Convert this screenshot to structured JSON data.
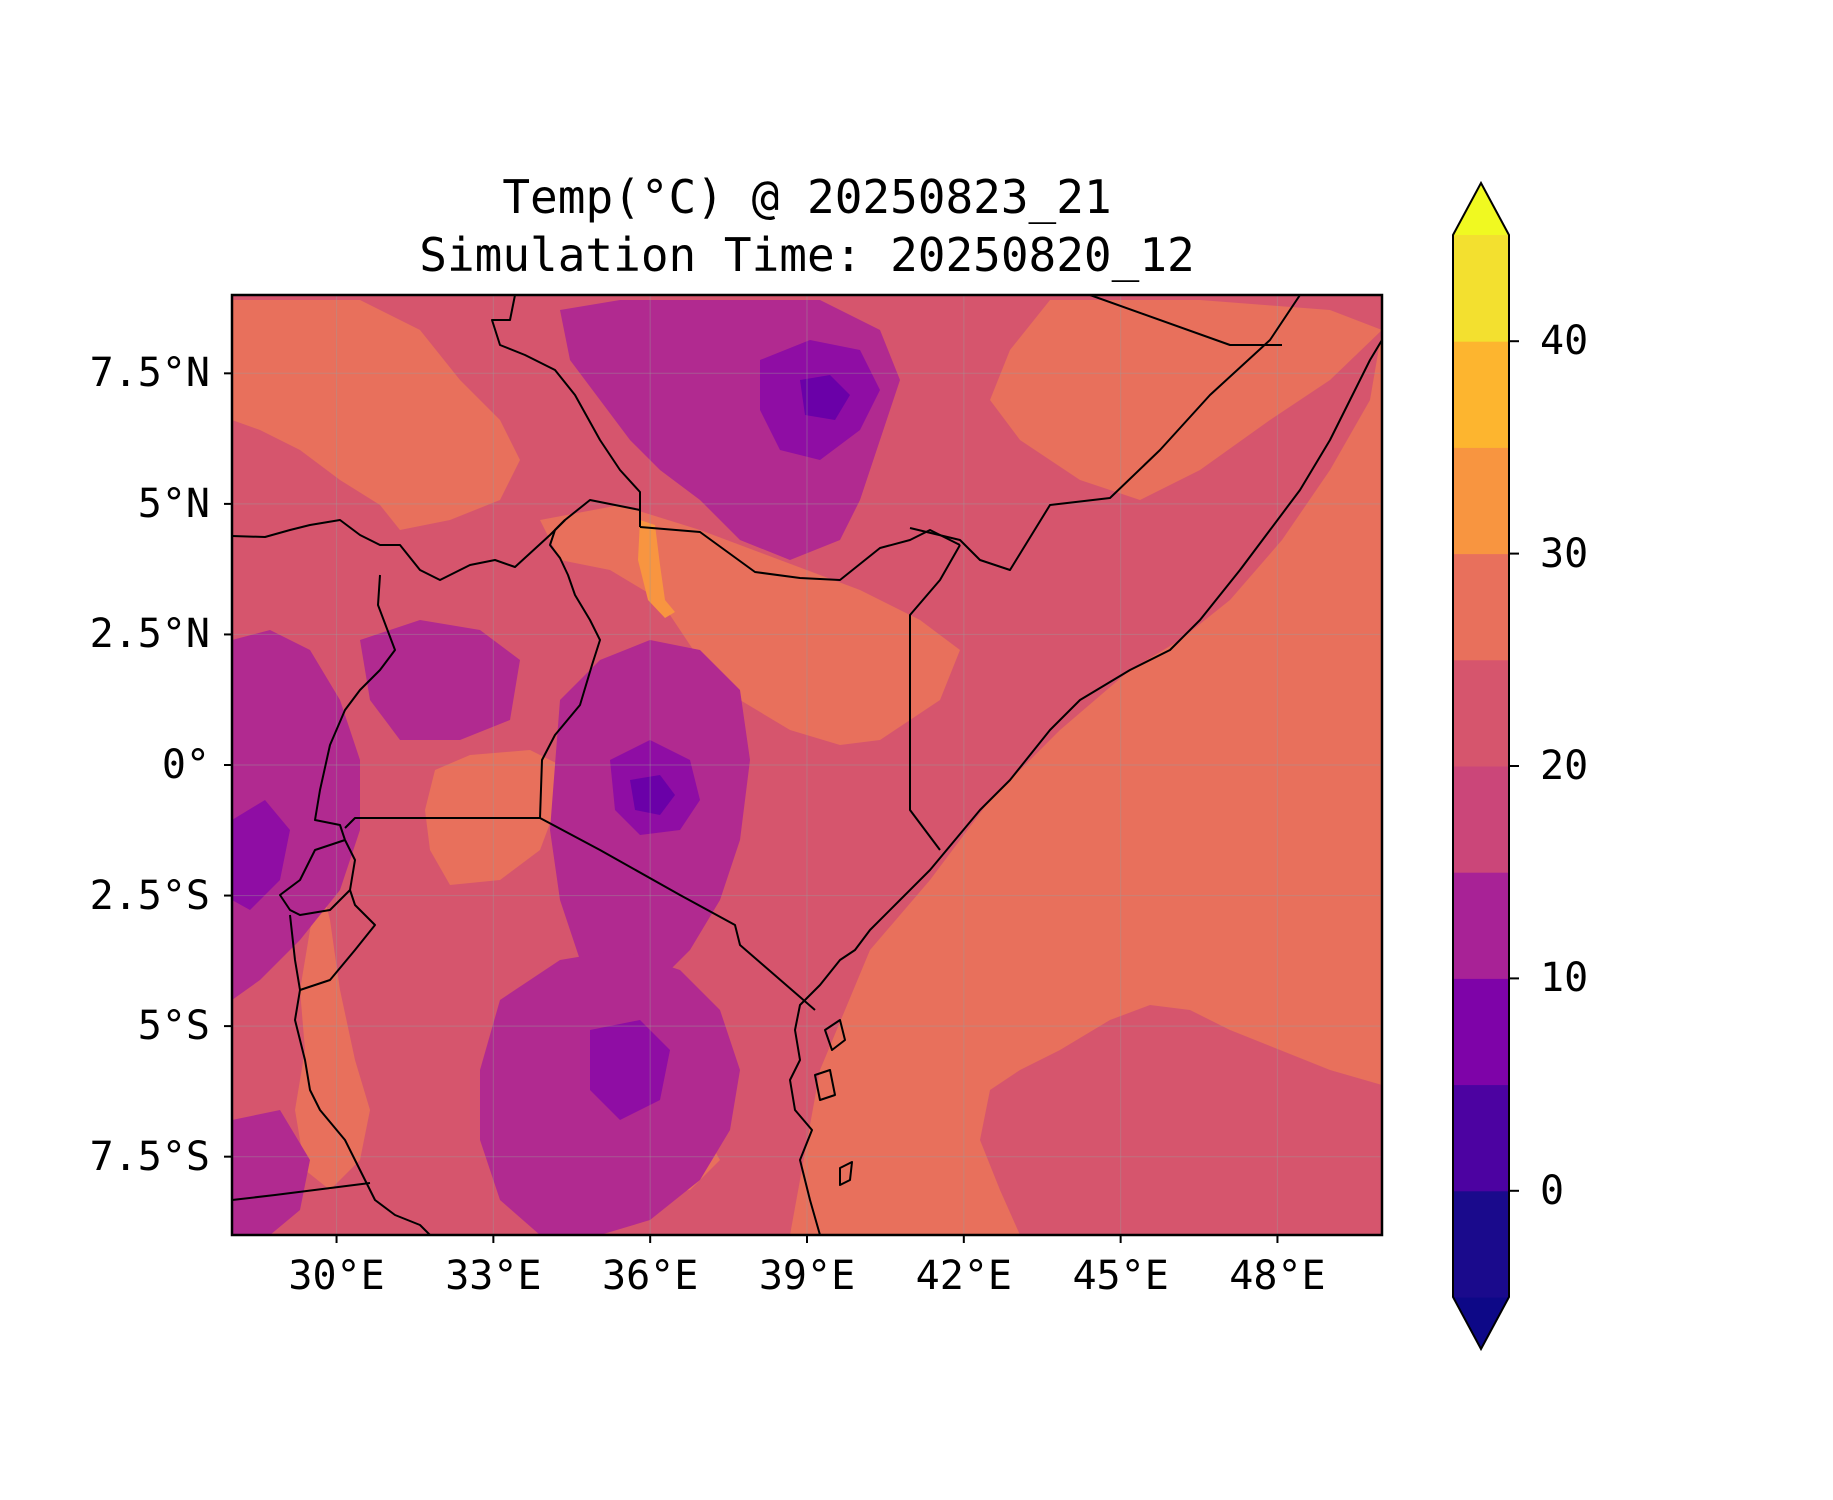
{
  "title": {
    "line1": "Temp(°C) @ 20250823_21",
    "line2": "Simulation Time: 20250820_12"
  },
  "map": {
    "lon_range": [
      28,
      50
    ],
    "lat_range": [
      -9,
      9
    ],
    "lat_ticks": [
      {
        "value": 7.5,
        "label": "7.5°N"
      },
      {
        "value": 5,
        "label": "5°N"
      },
      {
        "value": 2.5,
        "label": "2.5°N"
      },
      {
        "value": 0,
        "label": "0°"
      },
      {
        "value": -2.5,
        "label": "2.5°S"
      },
      {
        "value": -5,
        "label": "5°S"
      },
      {
        "value": -7.5,
        "label": "7.5°S"
      }
    ],
    "lon_ticks": [
      {
        "value": 30,
        "label": "30°E"
      },
      {
        "value": 33,
        "label": "33°E"
      },
      {
        "value": 36,
        "label": "36°E"
      },
      {
        "value": 39,
        "label": "39°E"
      },
      {
        "value": 42,
        "label": "42°E"
      },
      {
        "value": 45,
        "label": "45°E"
      },
      {
        "value": 48,
        "label": "48°E"
      }
    ],
    "grid": true
  },
  "colorbar": {
    "levels": [
      -5,
      0,
      5,
      10,
      15,
      20,
      25,
      30,
      35,
      40,
      45
    ],
    "colors": [
      "#1a0a8c",
      "#4c02a1",
      "#7e03a8",
      "#a82296",
      "#cb4679",
      "#d6556d",
      "#e8705c",
      "#f89540",
      "#fdb52f",
      "#f3e02f"
    ],
    "under_color": "#0d0887",
    "over_color": "#f0f921",
    "extend": "both",
    "ticks": [
      {
        "value": 0,
        "label": "0"
      },
      {
        "value": 10,
        "label": "10"
      },
      {
        "value": 20,
        "label": "20"
      },
      {
        "value": 30,
        "label": "30"
      },
      {
        "value": 40,
        "label": "40"
      }
    ]
  },
  "field_colors": {
    "very_cold": "#6a00a8",
    "cold": "#8f0da4",
    "cool": "#b12a90",
    "mild": "#cc4778",
    "warm": "#d6556d",
    "hot": "#e8705c",
    "very_hot": "#f89540"
  }
}
